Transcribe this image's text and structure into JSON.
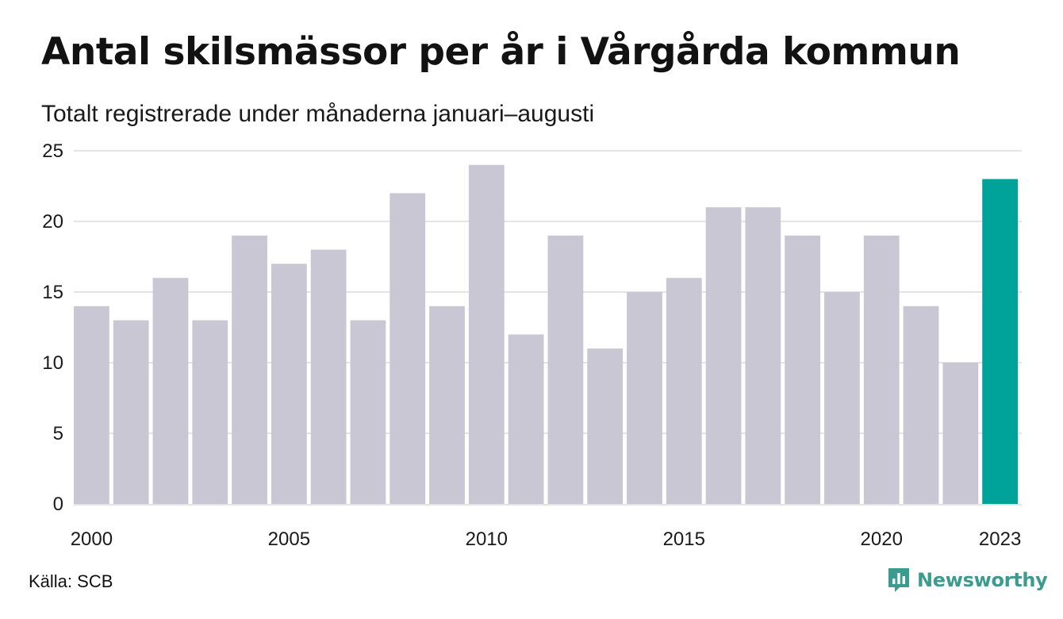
{
  "chart_data": {
    "type": "bar",
    "title": "Antal skilsmässor per år i Vårgårda kommun",
    "subtitle": "Totalt registrerade under månaderna januari–augusti",
    "categories": [
      "2000",
      "2001",
      "2002",
      "2003",
      "2004",
      "2005",
      "2006",
      "2007",
      "2008",
      "2009",
      "2010",
      "2011",
      "2012",
      "2013",
      "2014",
      "2015",
      "2016",
      "2017",
      "2018",
      "2019",
      "2020",
      "2021",
      "2022",
      "2023"
    ],
    "values": [
      14,
      13,
      16,
      13,
      19,
      17,
      18,
      13,
      22,
      14,
      24,
      12,
      19,
      11,
      15,
      16,
      21,
      21,
      19,
      15,
      19,
      14,
      10,
      23
    ],
    "x_tick_labels": [
      "2000",
      "2005",
      "2010",
      "2015",
      "2020",
      "2023"
    ],
    "y_ticks": [
      0,
      5,
      10,
      15,
      20,
      25
    ],
    "ylim": [
      0,
      25
    ],
    "grid": true,
    "highlight_category": "2023",
    "colors": {
      "bar": "#c9c7d3",
      "highlight": "#00a39a",
      "grid": "#e4e4e4"
    }
  },
  "footer": {
    "source": "Källa: SCB",
    "brand": "Newsworthy",
    "brand_icon": "newsworthy-logo-icon",
    "brand_color": "#3a9b8e"
  }
}
